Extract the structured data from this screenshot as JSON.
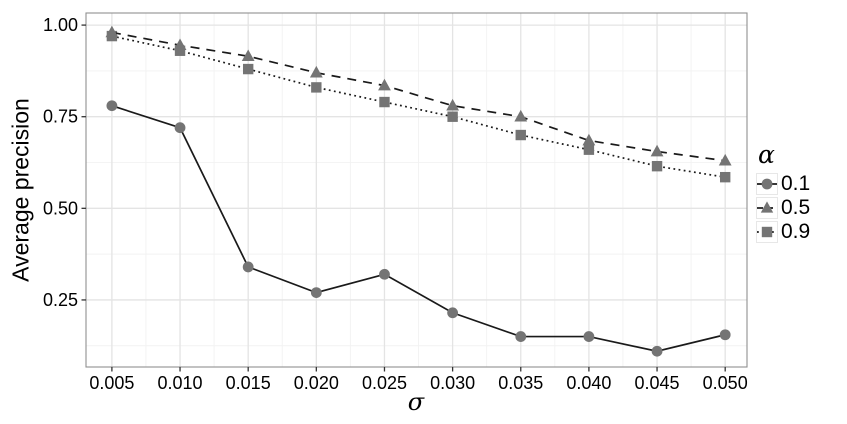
{
  "chart_data": {
    "type": "line",
    "title": "",
    "xlabel": "σ",
    "ylabel": "Average precision",
    "legend_title": "α",
    "legend_position": "right",
    "grid": true,
    "x": [
      0.005,
      0.01,
      0.015,
      0.02,
      0.025,
      0.03,
      0.035,
      0.04,
      0.045,
      0.05
    ],
    "x_ticks": [
      0.005,
      0.01,
      0.015,
      0.02,
      0.025,
      0.03,
      0.035,
      0.04,
      0.045,
      0.05
    ],
    "x_tick_labels": [
      "0.005",
      "0.010",
      "0.015",
      "0.020",
      "0.025",
      "0.030",
      "0.035",
      "0.040",
      "0.045",
      "0.050"
    ],
    "y_ticks": [
      0.25,
      0.5,
      0.75,
      1.0
    ],
    "y_tick_labels": [
      "0.25",
      "0.50",
      "0.75",
      "1.00"
    ],
    "xlim": [
      0.0031,
      0.0516
    ],
    "ylim": [
      0.067,
      1.033
    ],
    "series": [
      {
        "name": "0.1",
        "marker": "circle",
        "linestyle": "solid",
        "values": [
          0.78,
          0.72,
          0.34,
          0.27,
          0.32,
          0.215,
          0.15,
          0.15,
          0.11,
          0.155
        ]
      },
      {
        "name": "0.5",
        "marker": "triangle",
        "linestyle": "dashed",
        "values": [
          0.98,
          0.945,
          0.915,
          0.87,
          0.835,
          0.78,
          0.75,
          0.685,
          0.655,
          0.63
        ]
      },
      {
        "name": "0.9",
        "marker": "square",
        "linestyle": "dotted",
        "values": [
          0.97,
          0.93,
          0.88,
          0.83,
          0.79,
          0.75,
          0.7,
          0.66,
          0.615,
          0.585
        ]
      }
    ],
    "colors": {
      "line": "#1a1a1a",
      "marker": "#747474",
      "major_grid": "#e4e4e4",
      "minor_grid": "#f2f2f2",
      "panel_border": "#909090",
      "tick": "#333333",
      "text": "#000000",
      "background": "#ffffff"
    }
  }
}
